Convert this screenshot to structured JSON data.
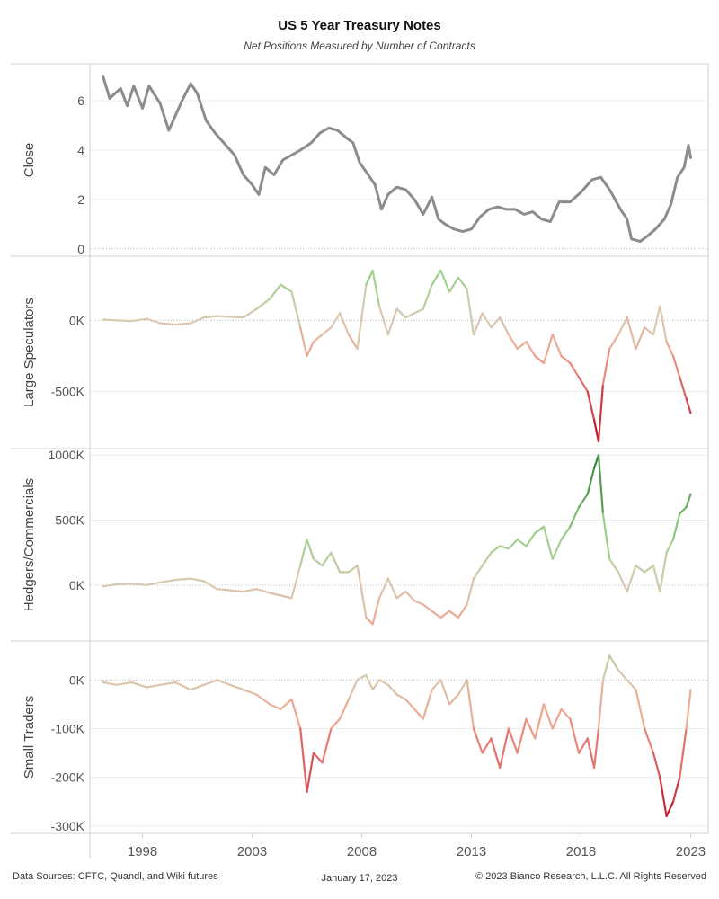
{
  "title": "US 5 Year Treasury Notes",
  "subtitle": "Net Positions Measured by Number of Contracts",
  "footer": {
    "sources": "Data Sources: CFTC, Quandl, and Wiki futures",
    "date": "January 17, 2023",
    "copyright": "© 2023 Bianco Research, L.L.C. All Rights Reserved"
  },
  "colors": {
    "close_line": "#8c8c8c",
    "positive_strong": "#2e7d32",
    "positive_light": "#9fd18e",
    "neutral": "#d9c9b0",
    "negative_light": "#f2a08c",
    "negative_strong": "#c2102a"
  },
  "chart_data": [
    {
      "type": "line",
      "ylabel": "Close",
      "x_ticks": [
        "1998",
        "2003",
        "2008",
        "2013",
        "2018",
        "2023"
      ],
      "y_ticks": [
        0,
        2,
        4,
        6
      ],
      "ylim": [
        -0.3,
        7.5
      ],
      "series": [
        {
          "color_mode": "single",
          "x": [
            1996.2,
            1996.5,
            1997.0,
            1997.3,
            1997.6,
            1998.0,
            1998.3,
            1998.8,
            1999.2,
            1999.8,
            2000.2,
            2000.5,
            2000.9,
            2001.3,
            2001.8,
            2002.2,
            2002.6,
            2003.0,
            2003.3,
            2003.6,
            2004.0,
            2004.4,
            2004.8,
            2005.2,
            2005.7,
            2006.1,
            2006.5,
            2006.9,
            2007.3,
            2007.6,
            2007.9,
            2008.3,
            2008.6,
            2008.9,
            2009.2,
            2009.6,
            2010.0,
            2010.4,
            2010.8,
            2011.2,
            2011.5,
            2011.8,
            2012.2,
            2012.6,
            2013.0,
            2013.4,
            2013.8,
            2014.2,
            2014.6,
            2015.0,
            2015.4,
            2015.8,
            2016.2,
            2016.6,
            2017.0,
            2017.5,
            2018.0,
            2018.5,
            2018.9,
            2019.3,
            2019.8,
            2020.1,
            2020.3,
            2020.7,
            2021.0,
            2021.4,
            2021.8,
            2022.1,
            2022.4,
            2022.7,
            2022.9,
            2023.0
          ],
          "values": [
            7.0,
            6.1,
            6.5,
            5.8,
            6.6,
            5.7,
            6.6,
            5.9,
            4.8,
            6.0,
            6.7,
            6.3,
            5.2,
            4.7,
            4.2,
            3.8,
            3.0,
            2.6,
            2.2,
            3.3,
            3.0,
            3.6,
            3.8,
            4.0,
            4.3,
            4.7,
            4.9,
            4.8,
            4.5,
            4.3,
            3.5,
            3.0,
            2.6,
            1.6,
            2.2,
            2.5,
            2.4,
            2.0,
            1.4,
            2.1,
            1.2,
            1.0,
            0.8,
            0.7,
            0.8,
            1.3,
            1.6,
            1.7,
            1.6,
            1.6,
            1.4,
            1.5,
            1.2,
            1.1,
            1.9,
            1.9,
            2.3,
            2.8,
            2.9,
            2.4,
            1.6,
            1.2,
            0.4,
            0.3,
            0.5,
            0.8,
            1.2,
            1.8,
            2.9,
            3.3,
            4.2,
            3.7
          ]
        }
      ]
    },
    {
      "type": "line",
      "ylabel": "Large Speculators",
      "y_ticks": [
        0,
        -500000
      ],
      "y_tick_labels": [
        "0K",
        "-500K"
      ],
      "ylim": [
        -900000,
        450000
      ],
      "series": [
        {
          "color_mode": "diverging",
          "color_scale": 800000,
          "x": [
            1996.2,
            1996.8,
            1997.5,
            1998.2,
            1998.8,
            1999.5,
            2000.2,
            2000.8,
            2001.4,
            2002.0,
            2002.6,
            2003.2,
            2003.8,
            2004.3,
            2004.8,
            2005.2,
            2005.5,
            2005.8,
            2006.2,
            2006.6,
            2007.0,
            2007.4,
            2007.8,
            2008.2,
            2008.5,
            2008.8,
            2009.2,
            2009.6,
            2010.0,
            2010.4,
            2010.8,
            2011.2,
            2011.6,
            2012.0,
            2012.4,
            2012.8,
            2013.1,
            2013.5,
            2013.9,
            2014.3,
            2014.7,
            2015.1,
            2015.5,
            2015.9,
            2016.3,
            2016.7,
            2017.1,
            2017.5,
            2017.9,
            2018.3,
            2018.6,
            2018.8,
            2019.0,
            2019.3,
            2019.7,
            2020.1,
            2020.5,
            2020.9,
            2021.3,
            2021.6,
            2021.9,
            2022.2,
            2022.5,
            2022.8,
            2023.0
          ],
          "values": [
            5000,
            0,
            -5000,
            10000,
            -20000,
            -30000,
            -20000,
            20000,
            30000,
            25000,
            20000,
            80000,
            150000,
            250000,
            200000,
            -50000,
            -250000,
            -150000,
            -100000,
            -50000,
            50000,
            -100000,
            -200000,
            250000,
            350000,
            100000,
            -100000,
            80000,
            20000,
            50000,
            80000,
            250000,
            350000,
            200000,
            300000,
            220000,
            -100000,
            50000,
            -50000,
            20000,
            -100000,
            -200000,
            -150000,
            -250000,
            -300000,
            -100000,
            -250000,
            -300000,
            -400000,
            -500000,
            -700000,
            -850000,
            -450000,
            -200000,
            -100000,
            20000,
            -200000,
            -50000,
            -100000,
            100000,
            -150000,
            -250000,
            -400000,
            -550000,
            -650000
          ]
        }
      ]
    },
    {
      "type": "line",
      "ylabel": "Hedgers/Commercials",
      "y_ticks": [
        0,
        500000,
        1000000
      ],
      "y_tick_labels": [
        "0K",
        "500K",
        "1000K"
      ],
      "ylim": [
        -430000,
        1050000
      ],
      "series": [
        {
          "color_mode": "diverging",
          "color_scale": 1000000,
          "x": [
            1996.2,
            1996.8,
            1997.5,
            1998.2,
            1998.8,
            1999.5,
            2000.2,
            2000.8,
            2001.4,
            2002.0,
            2002.6,
            2003.2,
            2003.8,
            2004.3,
            2004.8,
            2005.2,
            2005.5,
            2005.8,
            2006.2,
            2006.6,
            2007.0,
            2007.4,
            2007.8,
            2008.2,
            2008.5,
            2008.8,
            2009.2,
            2009.6,
            2010.0,
            2010.4,
            2010.8,
            2011.2,
            2011.6,
            2012.0,
            2012.4,
            2012.8,
            2013.1,
            2013.5,
            2013.9,
            2014.3,
            2014.7,
            2015.1,
            2015.5,
            2015.9,
            2016.3,
            2016.7,
            2017.1,
            2017.5,
            2017.9,
            2018.3,
            2018.6,
            2018.8,
            2019.0,
            2019.3,
            2019.7,
            2020.1,
            2020.5,
            2020.9,
            2021.3,
            2021.6,
            2021.9,
            2022.2,
            2022.5,
            2022.8,
            2023.0
          ],
          "values": [
            -10000,
            5000,
            10000,
            0,
            20000,
            40000,
            50000,
            30000,
            -30000,
            -40000,
            -50000,
            -30000,
            -60000,
            -80000,
            -100000,
            150000,
            350000,
            200000,
            150000,
            250000,
            100000,
            100000,
            150000,
            -250000,
            -300000,
            -100000,
            50000,
            -100000,
            -50000,
            -120000,
            -150000,
            -200000,
            -250000,
            -200000,
            -250000,
            -150000,
            50000,
            150000,
            250000,
            300000,
            280000,
            350000,
            300000,
            400000,
            450000,
            200000,
            350000,
            450000,
            600000,
            700000,
            900000,
            1000000,
            550000,
            200000,
            100000,
            -50000,
            150000,
            100000,
            150000,
            -50000,
            250000,
            350000,
            550000,
            600000,
            700000
          ]
        }
      ]
    },
    {
      "type": "line",
      "ylabel": "Small Traders",
      "y_ticks": [
        0,
        -100000,
        -200000,
        -300000
      ],
      "y_tick_labels": [
        "0K",
        "-100K",
        "-200K",
        "-300K"
      ],
      "ylim": [
        -315000,
        80000
      ],
      "series": [
        {
          "color_mode": "diverging",
          "color_scale": 280000,
          "x": [
            1996.2,
            1996.8,
            1997.5,
            1998.2,
            1998.8,
            1999.5,
            2000.2,
            2000.8,
            2001.4,
            2002.0,
            2002.6,
            2003.2,
            2003.8,
            2004.3,
            2004.8,
            2005.2,
            2005.5,
            2005.8,
            2006.2,
            2006.6,
            2007.0,
            2007.4,
            2007.8,
            2008.2,
            2008.5,
            2008.8,
            2009.2,
            2009.6,
            2010.0,
            2010.4,
            2010.8,
            2011.2,
            2011.6,
            2012.0,
            2012.4,
            2012.8,
            2013.1,
            2013.5,
            2013.9,
            2014.3,
            2014.7,
            2015.1,
            2015.5,
            2015.9,
            2016.3,
            2016.7,
            2017.1,
            2017.5,
            2017.9,
            2018.3,
            2018.6,
            2018.8,
            2019.0,
            2019.3,
            2019.7,
            2020.1,
            2020.5,
            2020.9,
            2021.3,
            2021.6,
            2021.9,
            2022.2,
            2022.5,
            2022.8,
            2023.0
          ],
          "values": [
            -5000,
            -10000,
            -5000,
            -15000,
            -10000,
            -5000,
            -20000,
            -10000,
            0,
            -10000,
            -20000,
            -30000,
            -50000,
            -60000,
            -40000,
            -100000,
            -230000,
            -150000,
            -170000,
            -100000,
            -80000,
            -40000,
            0,
            10000,
            -20000,
            0,
            -10000,
            -30000,
            -40000,
            -60000,
            -80000,
            -20000,
            0,
            -50000,
            -30000,
            0,
            -100000,
            -150000,
            -120000,
            -180000,
            -100000,
            -150000,
            -80000,
            -120000,
            -50000,
            -100000,
            -60000,
            -80000,
            -150000,
            -120000,
            -180000,
            -100000,
            0,
            50000,
            20000,
            0,
            -20000,
            -100000,
            -150000,
            -200000,
            -280000,
            -250000,
            -200000,
            -100000,
            -20000
          ]
        }
      ]
    }
  ]
}
